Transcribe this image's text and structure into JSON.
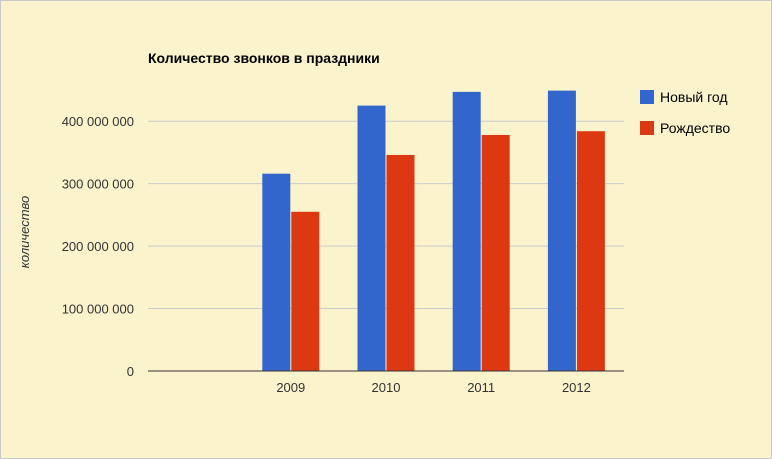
{
  "chart_data": {
    "type": "bar",
    "title": "Количество звонков в праздники",
    "xlabel": "",
    "ylabel": "количество",
    "categories": [
      "",
      "2009",
      "2010",
      "2011",
      "2012"
    ],
    "series": [
      {
        "name": "Новый год",
        "values": [
          null,
          316000000,
          425000000,
          447000000,
          449000000
        ],
        "color": "#3366cc"
      },
      {
        "name": "Рождество",
        "values": [
          null,
          255000000,
          346000000,
          378000000,
          384000000
        ],
        "color": "#dc3912"
      }
    ],
    "ylim": [
      0,
      450000000
    ],
    "yticks": [
      {
        "value": 0,
        "label": "0"
      },
      {
        "value": 100000000,
        "label": "100 000 000"
      },
      {
        "value": 200000000,
        "label": "200 000 000"
      },
      {
        "value": 300000000,
        "label": "300 000 000"
      },
      {
        "value": 400000000,
        "label": "400 000 000"
      }
    ],
    "grid": true,
    "legend": "right"
  }
}
